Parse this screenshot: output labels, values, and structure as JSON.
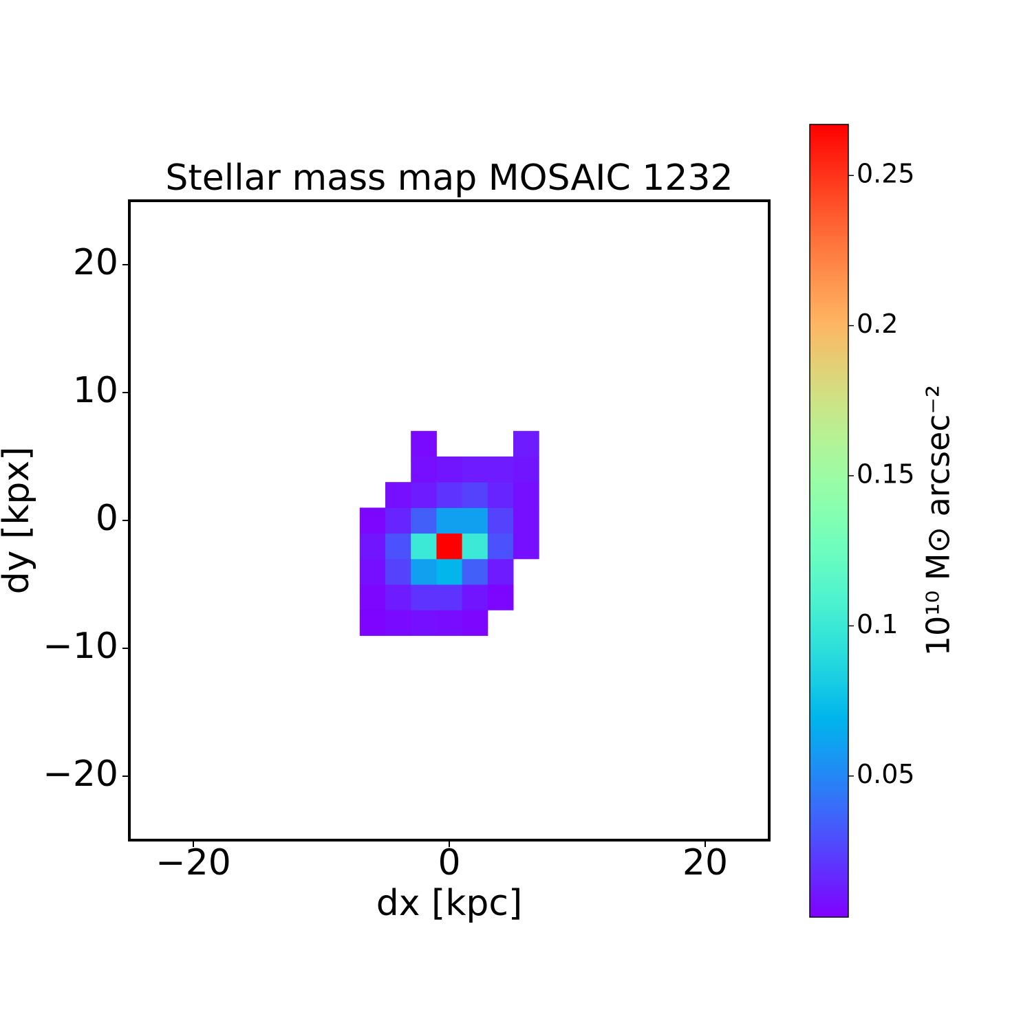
{
  "chart_data": {
    "type": "heatmap",
    "title": "Stellar mass map MOSAIC 1232",
    "x_label": "dx [kpc]",
    "y_label": "dy [kpx]",
    "colormap": "rainbow",
    "x": [
      -8,
      -6,
      -4,
      -2,
      0,
      2,
      4,
      6,
      8
    ],
    "y": [
      -8,
      -6,
      -4,
      -2,
      0,
      2,
      4,
      6
    ],
    "z": [
      [
        null,
        0.004,
        0.006,
        0.008,
        0.007,
        0.005,
        null,
        null,
        null
      ],
      [
        null,
        0.005,
        0.012,
        0.02,
        0.02,
        0.01,
        0.005,
        null,
        null
      ],
      [
        null,
        0.008,
        0.025,
        0.06,
        0.07,
        0.035,
        0.012,
        null,
        null
      ],
      [
        null,
        0.01,
        0.03,
        0.1,
        0.267,
        0.1,
        0.03,
        0.008,
        null
      ],
      [
        null,
        0.005,
        0.015,
        0.035,
        0.06,
        0.06,
        0.025,
        0.008,
        null
      ],
      [
        null,
        null,
        0.008,
        0.012,
        0.02,
        0.025,
        0.015,
        0.008,
        null
      ],
      [
        null,
        null,
        null,
        0.008,
        0.01,
        0.012,
        0.012,
        0.01,
        null
      ],
      [
        null,
        null,
        null,
        0.006,
        null,
        null,
        null,
        0.012,
        null
      ]
    ],
    "xlim": [
      -25,
      25
    ],
    "ylim": [
      -25,
      25
    ],
    "xticks": [
      {
        "value": -20,
        "label": "−20"
      },
      0,
      20
    ],
    "yticks": [
      {
        "value": -20,
        "label": "−20"
      },
      {
        "value": -10,
        "label": "−10"
      },
      0,
      10,
      20
    ],
    "colorbar": {
      "label": "10¹⁰ M⊙ arcsec⁻²",
      "clim": [
        0.003,
        0.267
      ],
      "ticks": [
        0.05,
        0.1,
        0.15,
        0.2,
        0.25
      ]
    }
  }
}
